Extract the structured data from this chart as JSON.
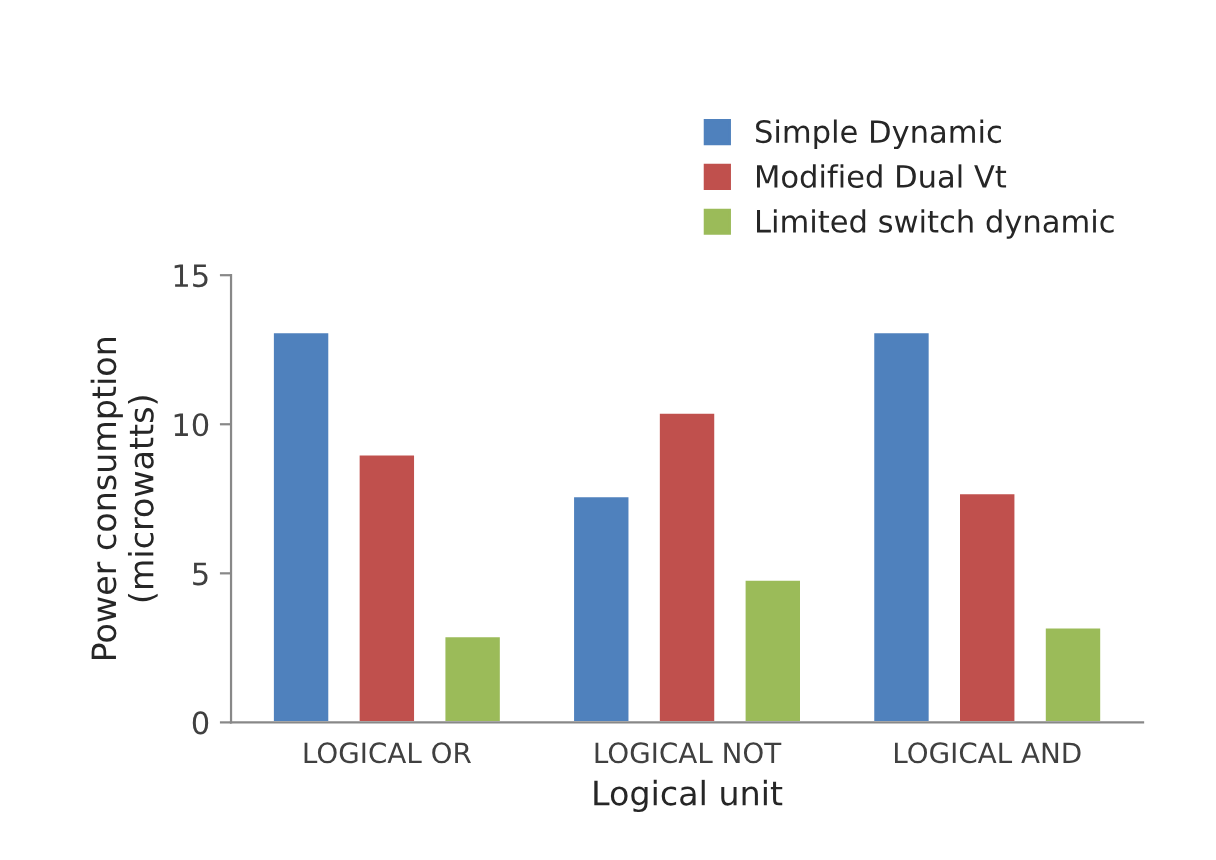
{
  "chart_data": {
    "type": "bar",
    "xlabel": "Logical unit",
    "ylabel": "Power consumption\n(microwatts)",
    "categories": [
      "LOGICAL OR",
      "LOGICAL NOT",
      "LOGICAL AND"
    ],
    "series": [
      {
        "name": "Simple Dynamic",
        "color": "#4f81bd",
        "values": [
          13.1,
          7.6,
          13.1
        ]
      },
      {
        "name": "Modified Dual Vt",
        "color": "#c0504d",
        "values": [
          9.0,
          10.4,
          7.7
        ]
      },
      {
        "name": "Limited switch dynamic",
        "color": "#9bbb59",
        "values": [
          2.9,
          4.8,
          3.2
        ]
      }
    ],
    "ylim": [
      0,
      15
    ],
    "yticks": [
      0,
      5,
      10,
      15
    ],
    "legend": "top right"
  }
}
